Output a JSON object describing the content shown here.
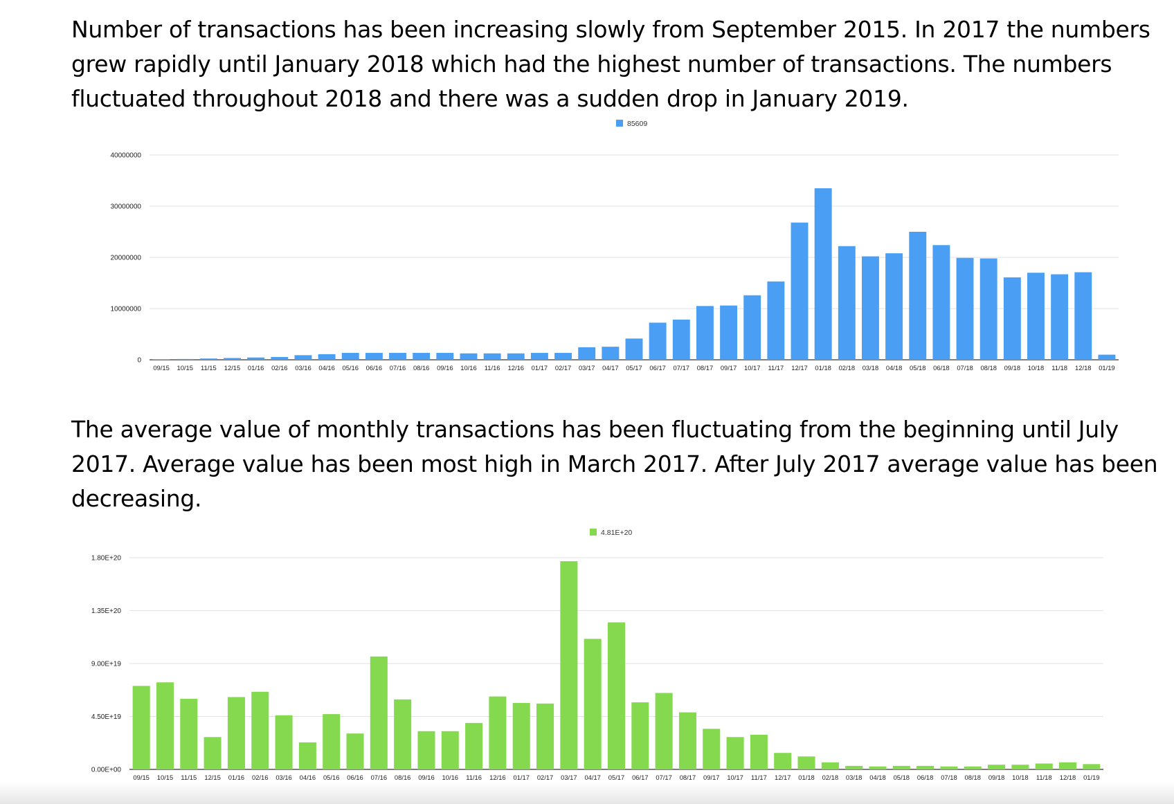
{
  "paragraphs": {
    "first": "Number of transactions has been increasing slowly from September 2015. In 2017 the numbers grew rapidly until January 2018 which had the highest number of transactions. The numbers fluctuated throughout 2018 and there was a sudden drop in January 2019.",
    "second": "The average value of monthly transactions has been fluctuating from the beginning until July 2017. Average value has been most high in March 2017. After July 2017 average value has been decreasing."
  },
  "chart_data": [
    {
      "type": "bar",
      "title": "",
      "xlabel": "",
      "ylabel": "",
      "legend_position": "top-center",
      "grid": true,
      "color": "#4a9ff5",
      "ylim": [
        0,
        40000000
      ],
      "y_ticks": [
        0,
        10000000,
        20000000,
        30000000,
        40000000
      ],
      "y_tick_labels": [
        "0",
        "10000000",
        "20000000",
        "30000000",
        "40000000"
      ],
      "categories": [
        "09/15",
        "10/15",
        "11/15",
        "12/15",
        "01/16",
        "02/16",
        "03/16",
        "04/16",
        "05/16",
        "06/16",
        "07/16",
        "08/16",
        "09/16",
        "10/16",
        "11/16",
        "12/16",
        "01/17",
        "02/17",
        "03/17",
        "04/17",
        "05/17",
        "06/17",
        "07/17",
        "08/17",
        "09/17",
        "10/17",
        "11/17",
        "12/17",
        "01/18",
        "02/18",
        "03/18",
        "04/18",
        "05/18",
        "06/18",
        "07/18",
        "08/18",
        "09/18",
        "10/18",
        "11/18",
        "12/18",
        "01/19"
      ],
      "series": [
        {
          "name": "85609",
          "values": [
            85609,
            150000,
            250000,
            350000,
            450000,
            550000,
            900000,
            1100000,
            1350000,
            1350000,
            1350000,
            1350000,
            1350000,
            1250000,
            1250000,
            1250000,
            1350000,
            1350000,
            2450000,
            2550000,
            4150000,
            7250000,
            7850000,
            10500000,
            10600000,
            12600000,
            15300000,
            26800000,
            33500000,
            22200000,
            20200000,
            20800000,
            25000000,
            22400000,
            19900000,
            19800000,
            16100000,
            17000000,
            16700000,
            17100000,
            1000000
          ]
        }
      ]
    },
    {
      "type": "bar",
      "title": "",
      "xlabel": "",
      "ylabel": "",
      "legend_position": "top-center",
      "grid": true,
      "color": "#85d94f",
      "ylim": [
        0,
        1.8e+20
      ],
      "y_ticks": [
        0,
        4.5e+19,
        9e+19,
        1.35e+20,
        1.8e+20
      ],
      "y_tick_labels": [
        "0.00E+00",
        "4.50E+19",
        "9.00E+19",
        "1.35E+20",
        "1.80E+20"
      ],
      "categories": [
        "09/15",
        "10/15",
        "11/15",
        "12/15",
        "01/16",
        "02/16",
        "03/16",
        "04/16",
        "05/16",
        "06/16",
        "07/16",
        "08/16",
        "09/16",
        "10/16",
        "11/16",
        "12/16",
        "01/17",
        "02/17",
        "03/17",
        "04/17",
        "05/17",
        "06/17",
        "07/17",
        "08/17",
        "09/17",
        "10/17",
        "11/17",
        "12/17",
        "01/18",
        "02/18",
        "03/18",
        "04/18",
        "05/18",
        "06/18",
        "07/18",
        "08/18",
        "09/18",
        "10/18",
        "11/18",
        "12/18",
        "01/19"
      ],
      "series": [
        {
          "name": "4.81E+20",
          "values": [
            7.1e+19,
            7.4e+19,
            6e+19,
            2.75e+19,
            6.15e+19,
            6.6e+19,
            4.6e+19,
            2.3e+19,
            4.7e+19,
            3.05e+19,
            9.6e+19,
            5.95e+19,
            3.25e+19,
            3.25e+19,
            3.95e+19,
            6.2e+19,
            5.65e+19,
            5.6e+19,
            1.77e+20,
            1.11e+20,
            1.25e+20,
            5.7e+19,
            6.5e+19,
            4.85e+19,
            3.45e+19,
            2.75e+19,
            2.95e+19,
            1.4e+19,
            1.1e+19,
            6e+18,
            3e+18,
            2.5e+18,
            3e+18,
            3e+18,
            2.5e+18,
            2.5e+18,
            4e+18,
            4e+18,
            5e+18,
            6e+18,
            4.5e+18
          ]
        }
      ]
    }
  ]
}
